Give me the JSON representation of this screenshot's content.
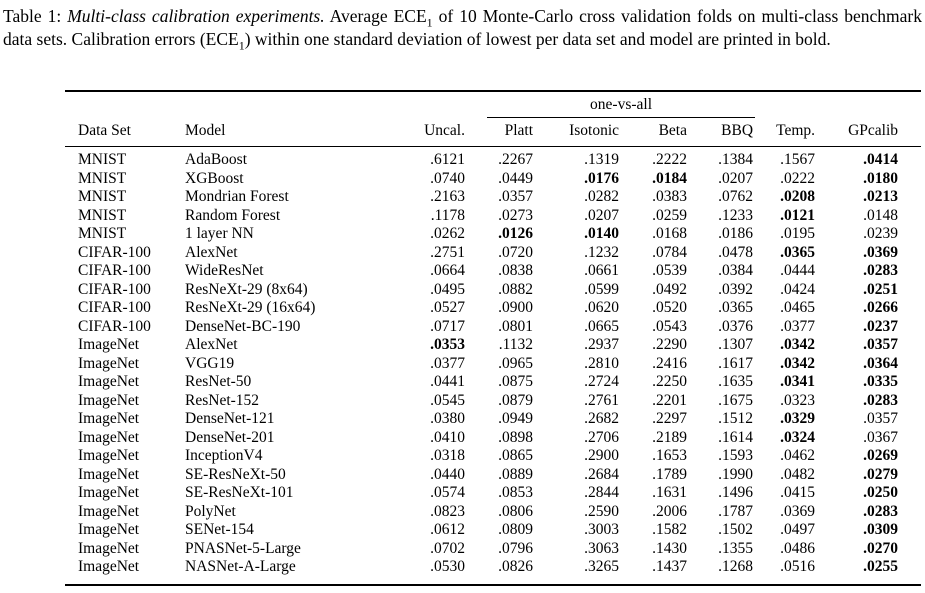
{
  "caption": {
    "label": "Table 1:",
    "title_italic": "Multi-class calibration experiments.",
    "body_1": "Average ECE",
    "sub_1": "1",
    "body_2": "of 10 Monte-Carlo cross validation folds on multi-class benchmark data sets. Calibration errors (ECE",
    "sub_2": "1",
    "body_3": ") within one standard deviation of lowest per data set and model are printed in bold."
  },
  "table": {
    "group_header": "one-vs-all",
    "columns": [
      "Data Set",
      "Model",
      "Uncal.",
      "Platt",
      "Isotonic",
      "Beta",
      "BBQ",
      "Temp.",
      "GPcalib"
    ],
    "rows": [
      {
        "dataset": "MNIST",
        "model": "AdaBoost",
        "values": [
          ".6121",
          ".2267",
          ".1319",
          ".2222",
          ".1384",
          ".1567",
          ".0414"
        ],
        "bold": [
          false,
          false,
          false,
          false,
          false,
          false,
          true
        ]
      },
      {
        "dataset": "MNIST",
        "model": "XGBoost",
        "values": [
          ".0740",
          ".0449",
          ".0176",
          ".0184",
          ".0207",
          ".0222",
          ".0180"
        ],
        "bold": [
          false,
          false,
          true,
          true,
          false,
          false,
          true
        ]
      },
      {
        "dataset": "MNIST",
        "model": "Mondrian Forest",
        "values": [
          ".2163",
          ".0357",
          ".0282",
          ".0383",
          ".0762",
          ".0208",
          ".0213"
        ],
        "bold": [
          false,
          false,
          false,
          false,
          false,
          true,
          true
        ]
      },
      {
        "dataset": "MNIST",
        "model": "Random Forest",
        "values": [
          ".1178",
          ".0273",
          ".0207",
          ".0259",
          ".1233",
          ".0121",
          ".0148"
        ],
        "bold": [
          false,
          false,
          false,
          false,
          false,
          true,
          false
        ]
      },
      {
        "dataset": "MNIST",
        "model": "1 layer NN",
        "values": [
          ".0262",
          ".0126",
          ".0140",
          ".0168",
          ".0186",
          ".0195",
          ".0239"
        ],
        "bold": [
          false,
          true,
          true,
          false,
          false,
          false,
          false
        ]
      },
      {
        "dataset": "CIFAR-100",
        "model": "AlexNet",
        "values": [
          ".2751",
          ".0720",
          ".1232",
          ".0784",
          ".0478",
          ".0365",
          ".0369"
        ],
        "bold": [
          false,
          false,
          false,
          false,
          false,
          true,
          true
        ]
      },
      {
        "dataset": "CIFAR-100",
        "model": "WideResNet",
        "values": [
          ".0664",
          ".0838",
          ".0661",
          ".0539",
          ".0384",
          ".0444",
          ".0283"
        ],
        "bold": [
          false,
          false,
          false,
          false,
          false,
          false,
          true
        ]
      },
      {
        "dataset": "CIFAR-100",
        "model": "ResNeXt-29 (8x64)",
        "values": [
          ".0495",
          ".0882",
          ".0599",
          ".0492",
          ".0392",
          ".0424",
          ".0251"
        ],
        "bold": [
          false,
          false,
          false,
          false,
          false,
          false,
          true
        ]
      },
      {
        "dataset": "CIFAR-100",
        "model": "ResNeXt-29 (16x64)",
        "values": [
          ".0527",
          ".0900",
          ".0620",
          ".0520",
          ".0365",
          ".0465",
          ".0266"
        ],
        "bold": [
          false,
          false,
          false,
          false,
          false,
          false,
          true
        ]
      },
      {
        "dataset": "CIFAR-100",
        "model": "DenseNet-BC-190",
        "values": [
          ".0717",
          ".0801",
          ".0665",
          ".0543",
          ".0376",
          ".0377",
          ".0237"
        ],
        "bold": [
          false,
          false,
          false,
          false,
          false,
          false,
          true
        ]
      },
      {
        "dataset": "ImageNet",
        "model": "AlexNet",
        "values": [
          ".0353",
          ".1132",
          ".2937",
          ".2290",
          ".1307",
          ".0342",
          ".0357"
        ],
        "bold": [
          true,
          false,
          false,
          false,
          false,
          true,
          true
        ]
      },
      {
        "dataset": "ImageNet",
        "model": "VGG19",
        "values": [
          ".0377",
          ".0965",
          ".2810",
          ".2416",
          ".1617",
          ".0342",
          ".0364"
        ],
        "bold": [
          false,
          false,
          false,
          false,
          false,
          true,
          true
        ]
      },
      {
        "dataset": "ImageNet",
        "model": "ResNet-50",
        "values": [
          ".0441",
          ".0875",
          ".2724",
          ".2250",
          ".1635",
          ".0341",
          ".0335"
        ],
        "bold": [
          false,
          false,
          false,
          false,
          false,
          true,
          true
        ]
      },
      {
        "dataset": "ImageNet",
        "model": "ResNet-152",
        "values": [
          ".0545",
          ".0879",
          ".2761",
          ".2201",
          ".1675",
          ".0323",
          ".0283"
        ],
        "bold": [
          false,
          false,
          false,
          false,
          false,
          false,
          true
        ]
      },
      {
        "dataset": "ImageNet",
        "model": "DenseNet-121",
        "values": [
          ".0380",
          ".0949",
          ".2682",
          ".2297",
          ".1512",
          ".0329",
          ".0357"
        ],
        "bold": [
          false,
          false,
          false,
          false,
          false,
          true,
          false
        ]
      },
      {
        "dataset": "ImageNet",
        "model": "DenseNet-201",
        "values": [
          ".0410",
          ".0898",
          ".2706",
          ".2189",
          ".1614",
          ".0324",
          ".0367"
        ],
        "bold": [
          false,
          false,
          false,
          false,
          false,
          true,
          false
        ]
      },
      {
        "dataset": "ImageNet",
        "model": "InceptionV4",
        "values": [
          ".0318",
          ".0865",
          ".2900",
          ".1653",
          ".1593",
          ".0462",
          ".0269"
        ],
        "bold": [
          false,
          false,
          false,
          false,
          false,
          false,
          true
        ]
      },
      {
        "dataset": "ImageNet",
        "model": "SE-ResNeXt-50",
        "values": [
          ".0440",
          ".0889",
          ".2684",
          ".1789",
          ".1990",
          ".0482",
          ".0279"
        ],
        "bold": [
          false,
          false,
          false,
          false,
          false,
          false,
          true
        ]
      },
      {
        "dataset": "ImageNet",
        "model": "SE-ResNeXt-101",
        "values": [
          ".0574",
          ".0853",
          ".2844",
          ".1631",
          ".1496",
          ".0415",
          ".0250"
        ],
        "bold": [
          false,
          false,
          false,
          false,
          false,
          false,
          true
        ]
      },
      {
        "dataset": "ImageNet",
        "model": "PolyNet",
        "values": [
          ".0823",
          ".0806",
          ".2590",
          ".2006",
          ".1787",
          ".0369",
          ".0283"
        ],
        "bold": [
          false,
          false,
          false,
          false,
          false,
          false,
          true
        ]
      },
      {
        "dataset": "ImageNet",
        "model": "SENet-154",
        "values": [
          ".0612",
          ".0809",
          ".3003",
          ".1582",
          ".1502",
          ".0497",
          ".0309"
        ],
        "bold": [
          false,
          false,
          false,
          false,
          false,
          false,
          true
        ]
      },
      {
        "dataset": "ImageNet",
        "model": "PNASNet-5-Large",
        "values": [
          ".0702",
          ".0796",
          ".3063",
          ".1430",
          ".1355",
          ".0486",
          ".0270"
        ],
        "bold": [
          false,
          false,
          false,
          false,
          false,
          false,
          true
        ]
      },
      {
        "dataset": "ImageNet",
        "model": "NASNet-A-Large",
        "values": [
          ".0530",
          ".0826",
          ".3265",
          ".1437",
          ".1268",
          ".0516",
          ".0255"
        ],
        "bold": [
          false,
          false,
          false,
          false,
          false,
          false,
          true
        ]
      }
    ]
  }
}
